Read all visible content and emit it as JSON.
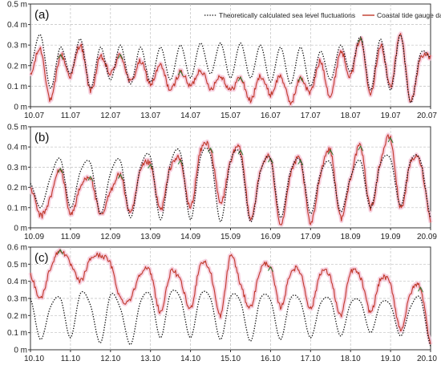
{
  "figure": {
    "legend": {
      "theoretical_label": "Theoretically calculated sea level fluctuations",
      "gauge_label": "Coastal tide gauge data"
    },
    "colors": {
      "theoretical": "#111111",
      "gauge": "#c0392b",
      "gauge_highlight": "#2e7d32",
      "gauge_band": "#f5c6d8",
      "grid": "#bfbfbf",
      "axis": "#333333"
    }
  },
  "chart_data": [
    {
      "type": "line",
      "panel": "(a)",
      "categories": [
        "10.07",
        "11.07",
        "12.07",
        "13.07",
        "14.07",
        "15.07",
        "16.07",
        "17.07",
        "18.07",
        "19.07",
        "20.07"
      ],
      "ylim": [
        0,
        0.5
      ],
      "yticks": [
        "0 m",
        "0.1 m",
        "0.2 m",
        "0.3 m",
        "0.4 m",
        "0.5 m"
      ],
      "grid": true,
      "legend_position": "top-right",
      "series": [
        {
          "name": "Theoretically calculated sea level fluctuations",
          "style": "dotted",
          "x": [
            0,
            0.25,
            0.5,
            0.75,
            1,
            1.25,
            1.5,
            1.75,
            2,
            2.25,
            2.5,
            2.75,
            3,
            3.25,
            3.5,
            3.75,
            4,
            4.25,
            4.5,
            4.75,
            5,
            5.25,
            5.5,
            5.75,
            6,
            6.25,
            6.5,
            6.75,
            7,
            7.25,
            7.5,
            7.75,
            8,
            8.25,
            8.5,
            8.75,
            9,
            9.25,
            9.5,
            9.75,
            10
          ],
          "values": [
            0.2,
            0.35,
            0.09,
            0.29,
            0.16,
            0.33,
            0.09,
            0.29,
            0.13,
            0.3,
            0.11,
            0.29,
            0.12,
            0.29,
            0.13,
            0.3,
            0.14,
            0.31,
            0.16,
            0.31,
            0.14,
            0.31,
            0.14,
            0.3,
            0.12,
            0.29,
            0.11,
            0.29,
            0.1,
            0.27,
            0.13,
            0.3,
            0.17,
            0.34,
            0.08,
            0.33,
            0.08,
            0.35,
            0.02,
            0.26,
            0.24
          ]
        },
        {
          "name": "Coastal tide gauge data",
          "style": "noisy",
          "x": [
            0,
            0.25,
            0.5,
            0.75,
            1,
            1.25,
            1.5,
            1.75,
            2,
            2.25,
            2.5,
            2.75,
            3,
            3.25,
            3.5,
            3.75,
            4,
            4.25,
            4.5,
            4.75,
            5,
            5.25,
            5.5,
            5.75,
            6,
            6.25,
            6.5,
            6.75,
            7,
            7.25,
            7.5,
            7.75,
            8,
            8.25,
            8.5,
            8.75,
            9,
            9.25,
            9.5,
            9.75,
            10
          ],
          "values": [
            0.15,
            0.28,
            0.03,
            0.25,
            0.15,
            0.3,
            0.08,
            0.24,
            0.16,
            0.25,
            0.12,
            0.22,
            0.11,
            0.2,
            0.08,
            0.17,
            0.1,
            0.18,
            0.09,
            0.15,
            0.08,
            0.14,
            0.03,
            0.15,
            0.06,
            0.15,
            0.02,
            0.14,
            0.07,
            0.22,
            0.05,
            0.27,
            0.15,
            0.33,
            0.07,
            0.3,
            0.1,
            0.35,
            0.03,
            0.24,
            0.24
          ]
        }
      ]
    },
    {
      "type": "line",
      "panel": "(b)",
      "categories": [
        "10.09",
        "11.09",
        "12.09",
        "13.09",
        "14.09",
        "15.09",
        "16.09",
        "17.09",
        "18.09",
        "19.09",
        "20.09"
      ],
      "ylim": [
        0,
        0.5
      ],
      "yticks": [
        "0 m",
        "0.1 m",
        "0.2 m",
        "0.3 m",
        "0.4 m",
        "0.5 m"
      ],
      "grid": true,
      "series": [
        {
          "name": "Theoretically calculated sea level fluctuations",
          "style": "dotted",
          "x": [
            0,
            0.25,
            0.5,
            0.75,
            1,
            1.25,
            1.5,
            1.75,
            2,
            2.25,
            2.5,
            2.75,
            3,
            3.25,
            3.5,
            3.75,
            4,
            4.25,
            4.5,
            4.75,
            5,
            5.25,
            5.5,
            5.75,
            6,
            6.25,
            6.5,
            6.75,
            7,
            7.25,
            7.5,
            7.75,
            8,
            8.25,
            8.5,
            8.75,
            9,
            9.25,
            9.5,
            9.75,
            10
          ],
          "values": [
            0.22,
            0.1,
            0.25,
            0.34,
            0.1,
            0.28,
            0.32,
            0.07,
            0.27,
            0.33,
            0.05,
            0.3,
            0.35,
            0.04,
            0.32,
            0.37,
            0.04,
            0.35,
            0.36,
            0.03,
            0.33,
            0.36,
            0.03,
            0.28,
            0.34,
            0.05,
            0.28,
            0.33,
            0.07,
            0.27,
            0.32,
            0.08,
            0.25,
            0.33,
            0.1,
            0.32,
            0.34,
            0.11,
            0.33,
            0.33,
            0.05
          ]
        },
        {
          "name": "Coastal tide gauge data",
          "style": "noisy",
          "x": [
            0,
            0.25,
            0.5,
            0.75,
            1,
            1.25,
            1.5,
            1.75,
            2,
            2.25,
            2.5,
            2.75,
            3,
            3.25,
            3.5,
            3.75,
            4,
            4.25,
            4.5,
            4.75,
            5,
            5.25,
            5.5,
            5.75,
            6,
            6.25,
            6.5,
            6.75,
            7,
            7.25,
            7.5,
            7.75,
            8,
            8.25,
            8.5,
            8.75,
            9,
            9.25,
            9.5,
            9.75,
            10
          ],
          "values": [
            0.2,
            0.06,
            0.15,
            0.29,
            0.07,
            0.2,
            0.25,
            0.06,
            0.18,
            0.26,
            0.07,
            0.28,
            0.31,
            0.09,
            0.3,
            0.33,
            0.1,
            0.38,
            0.39,
            0.12,
            0.33,
            0.38,
            0.05,
            0.28,
            0.34,
            0.02,
            0.26,
            0.33,
            0.02,
            0.27,
            0.38,
            0.05,
            0.25,
            0.4,
            0.1,
            0.33,
            0.44,
            0.1,
            0.32,
            0.32,
            0.04
          ]
        }
      ]
    },
    {
      "type": "line",
      "panel": "(c)",
      "categories": [
        "10.10",
        "11.10",
        "12.10",
        "13.10",
        "14.10",
        "15.10",
        "16.10",
        "17.10",
        "18.10",
        "19.10",
        "20.10"
      ],
      "ylim": [
        0,
        0.6
      ],
      "yticks": [
        "0 m",
        "0.1 m",
        "0.2 m",
        "0.3 m",
        "0.4 m",
        "0.5 m",
        "0.6 m"
      ],
      "grid": true,
      "series": [
        {
          "name": "Theoretically calculated sea level fluctuations",
          "style": "dotted",
          "x": [
            0,
            0.25,
            0.5,
            0.75,
            1,
            1.25,
            1.5,
            1.75,
            2,
            2.25,
            2.5,
            2.75,
            3,
            3.25,
            3.5,
            3.75,
            4,
            4.25,
            4.5,
            4.75,
            5,
            5.25,
            5.5,
            5.75,
            6,
            6.25,
            6.5,
            6.75,
            7,
            7.25,
            7.5,
            7.75,
            8,
            8.25,
            8.5,
            8.75,
            9,
            9.25,
            9.5,
            9.75,
            10
          ],
          "values": [
            0.3,
            0.06,
            0.25,
            0.3,
            0.07,
            0.33,
            0.26,
            0.04,
            0.32,
            0.24,
            0.03,
            0.28,
            0.32,
            0.07,
            0.33,
            0.3,
            0.07,
            0.32,
            0.3,
            0.06,
            0.31,
            0.28,
            0.05,
            0.3,
            0.29,
            0.06,
            0.3,
            0.28,
            0.07,
            0.27,
            0.29,
            0.08,
            0.27,
            0.28,
            0.1,
            0.27,
            0.26,
            0.08,
            0.25,
            0.3,
            0.02
          ]
        },
        {
          "name": "Coastal tide gauge data",
          "style": "noisy",
          "x": [
            0,
            0.25,
            0.5,
            0.75,
            1,
            1.25,
            1.5,
            1.75,
            2,
            2.25,
            2.5,
            2.75,
            3,
            3.25,
            3.5,
            3.75,
            4,
            4.25,
            4.5,
            4.75,
            5,
            5.25,
            5.5,
            5.75,
            6,
            6.25,
            6.5,
            6.75,
            7,
            7.25,
            7.5,
            7.75,
            8,
            8.25,
            8.5,
            8.75,
            9,
            9.25,
            9.5,
            9.75,
            10
          ],
          "values": [
            0.44,
            0.3,
            0.48,
            0.58,
            0.5,
            0.4,
            0.53,
            0.55,
            0.5,
            0.3,
            0.3,
            0.45,
            0.45,
            0.22,
            0.45,
            0.4,
            0.24,
            0.5,
            0.45,
            0.2,
            0.55,
            0.38,
            0.25,
            0.47,
            0.48,
            0.25,
            0.45,
            0.45,
            0.24,
            0.45,
            0.42,
            0.2,
            0.45,
            0.42,
            0.22,
            0.41,
            0.38,
            0.12,
            0.33,
            0.36,
            0.04
          ]
        }
      ]
    }
  ]
}
